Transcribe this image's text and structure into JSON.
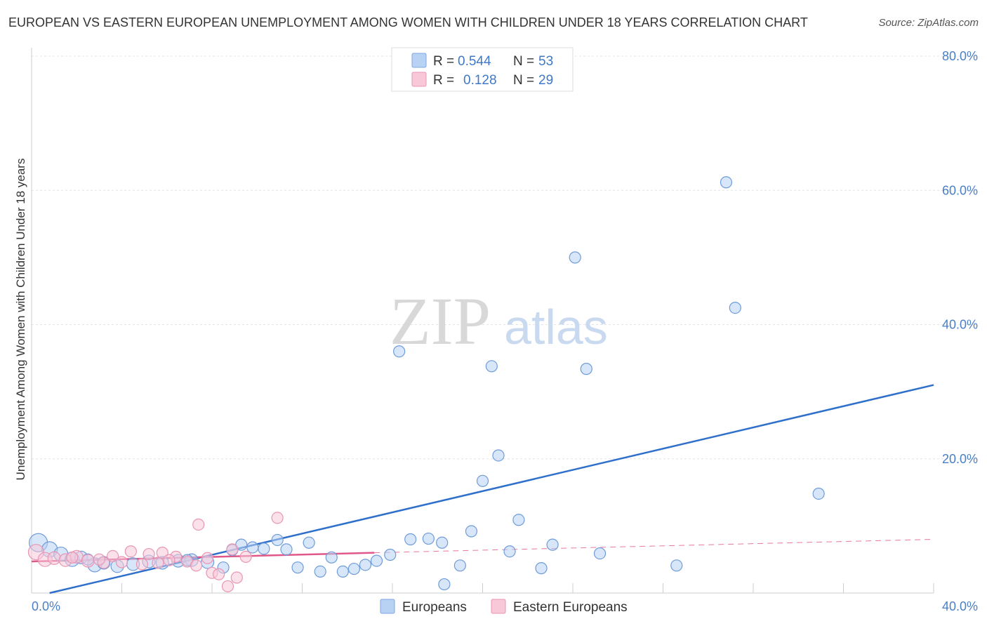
{
  "title": "EUROPEAN VS EASTERN EUROPEAN UNEMPLOYMENT AMONG WOMEN WITH CHILDREN UNDER 18 YEARS CORRELATION CHART",
  "source": "Source: ZipAtlas.com",
  "watermark": {
    "zip": "ZIP",
    "atlas": "atlas"
  },
  "legend": {
    "rows": [
      {
        "r_label": "R =",
        "r_value": "0.544",
        "n_label": "N =",
        "n_value": "53",
        "color": "#b8d2f4",
        "stroke": "#7fa8e0"
      },
      {
        "r_label": "R =",
        "r_value": "0.128",
        "n_label": "N =",
        "n_value": "29",
        "color": "#f8c8d8",
        "stroke": "#e896b4"
      }
    ]
  },
  "bottom_legend": [
    "Europeans",
    "Eastern Europeans"
  ],
  "chart_data": {
    "type": "scatter",
    "title": "EUROPEAN VS EASTERN EUROPEAN UNEMPLOYMENT AMONG WOMEN WITH CHILDREN UNDER 18 YEARS CORRELATION CHART",
    "xlabel": "",
    "ylabel": "Unemployment Among Women with Children Under 18 years",
    "xlim": [
      0,
      40
    ],
    "ylim": [
      0,
      80
    ],
    "x_tick_labels": [
      "0.0%",
      "40.0%"
    ],
    "y_ticks": [
      20,
      40,
      60,
      80
    ],
    "y_tick_labels": [
      "20.0%",
      "40.0%",
      "60.0%",
      "80.0%"
    ],
    "series": [
      {
        "name": "Europeans",
        "color": "#b8d2f4",
        "stroke": "#6e9cd8",
        "line_color": "#2f6fcc",
        "trend": {
          "x": [
            0.8,
            40
          ],
          "y": [
            0.0,
            31.0
          ],
          "dashed_x": []
        },
        "points": [
          [
            0.3,
            7.5,
            13
          ],
          [
            0.8,
            6.5,
            11
          ],
          [
            1.3,
            5.8,
            10
          ],
          [
            1.8,
            5.0,
            10
          ],
          [
            2.2,
            5.3,
            9
          ],
          [
            2.8,
            4.2,
            10
          ],
          [
            3.2,
            4.5,
            9
          ],
          [
            3.8,
            4.0,
            9
          ],
          [
            4.5,
            4.3,
            9
          ],
          [
            5.2,
            4.7,
            9
          ],
          [
            5.8,
            4.5,
            9
          ],
          [
            6.5,
            4.8,
            9
          ],
          [
            7.1,
            4.9,
            9
          ],
          [
            7.8,
            4.6,
            9
          ],
          [
            8.5,
            3.8,
            8
          ],
          [
            8.9,
            6.4,
            8
          ],
          [
            9.3,
            7.2,
            8
          ],
          [
            9.8,
            6.8,
            8
          ],
          [
            10.3,
            6.6,
            8
          ],
          [
            10.9,
            7.9,
            8
          ],
          [
            11.3,
            6.5,
            8
          ],
          [
            11.8,
            3.8,
            8
          ],
          [
            12.3,
            7.5,
            8
          ],
          [
            12.8,
            3.2,
            8
          ],
          [
            13.3,
            5.3,
            8
          ],
          [
            13.8,
            3.2,
            8
          ],
          [
            14.3,
            3.6,
            8
          ],
          [
            14.8,
            4.2,
            8
          ],
          [
            15.3,
            4.8,
            8
          ],
          [
            15.9,
            5.7,
            8
          ],
          [
            16.3,
            36.0,
            8
          ],
          [
            16.8,
            8.0,
            8
          ],
          [
            17.6,
            8.1,
            8
          ],
          [
            18.2,
            7.5,
            8
          ],
          [
            18.3,
            1.3,
            8
          ],
          [
            19.0,
            4.1,
            8
          ],
          [
            19.5,
            9.2,
            8
          ],
          [
            20.0,
            16.7,
            8
          ],
          [
            20.4,
            33.8,
            8
          ],
          [
            20.7,
            20.5,
            8
          ],
          [
            21.2,
            6.2,
            8
          ],
          [
            21.6,
            10.9,
            8
          ],
          [
            22.6,
            3.7,
            8
          ],
          [
            23.1,
            7.2,
            8
          ],
          [
            24.1,
            50.0,
            8
          ],
          [
            24.6,
            33.4,
            8
          ],
          [
            25.2,
            5.9,
            8
          ],
          [
            28.6,
            4.1,
            8
          ],
          [
            30.8,
            61.2,
            8
          ],
          [
            31.2,
            42.5,
            8
          ],
          [
            34.9,
            14.8,
            8
          ],
          [
            2.5,
            5.0,
            8
          ],
          [
            6.9,
            4.9,
            8
          ]
        ]
      },
      {
        "name": "Eastern Europeans",
        "color": "#f8c8d8",
        "stroke": "#e896b4",
        "line_color": "#e0588a",
        "trend": {
          "x": [
            0,
            15.2
          ],
          "y": [
            4.7,
            6.0
          ],
          "dashed_x": [
            15.2,
            40
          ],
          "dashed_y": [
            6.0,
            8.0
          ]
        },
        "points": [
          [
            0.2,
            6.1,
            11
          ],
          [
            0.6,
            5.0,
            10
          ],
          [
            1.0,
            5.2,
            9
          ],
          [
            1.5,
            4.9,
            9
          ],
          [
            2.0,
            5.4,
            9
          ],
          [
            2.5,
            4.8,
            9
          ],
          [
            3.2,
            4.5,
            8
          ],
          [
            3.6,
            5.5,
            8
          ],
          [
            4.0,
            4.6,
            8
          ],
          [
            4.4,
            6.2,
            8
          ],
          [
            4.9,
            4.3,
            8
          ],
          [
            5.2,
            5.8,
            8
          ],
          [
            5.6,
            4.5,
            8
          ],
          [
            5.8,
            6.0,
            8
          ],
          [
            6.4,
            5.4,
            8
          ],
          [
            6.9,
            4.7,
            8
          ],
          [
            7.3,
            4.1,
            8
          ],
          [
            7.4,
            10.2,
            8
          ],
          [
            7.8,
            5.2,
            8
          ],
          [
            8.0,
            3.0,
            8
          ],
          [
            8.3,
            2.8,
            8
          ],
          [
            8.7,
            1.0,
            8
          ],
          [
            9.1,
            2.3,
            8
          ],
          [
            9.5,
            5.4,
            8
          ],
          [
            10.9,
            11.2,
            8
          ],
          [
            1.8,
            5.3,
            8
          ],
          [
            3.0,
            5.0,
            8
          ],
          [
            6.1,
            4.9,
            8
          ],
          [
            8.9,
            6.5,
            8
          ]
        ]
      }
    ]
  }
}
